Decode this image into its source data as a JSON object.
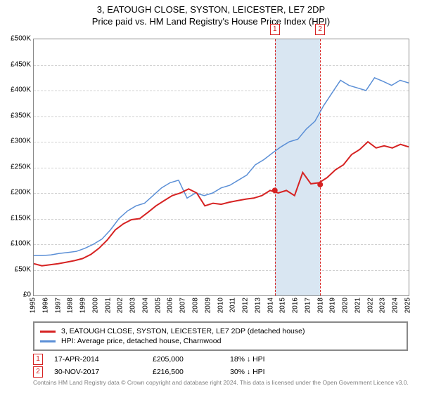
{
  "title_line1": "3, EATOUGH CLOSE, SYSTON, LEICESTER, LE7 2DP",
  "title_line2": "Price paid vs. HM Land Registry's House Price Index (HPI)",
  "chart": {
    "type": "line",
    "x_years": [
      1995,
      1996,
      1997,
      1998,
      1999,
      2000,
      2001,
      2002,
      2003,
      2004,
      2005,
      2006,
      2007,
      2008,
      2009,
      2010,
      2011,
      2012,
      2013,
      2014,
      2015,
      2016,
      2017,
      2018,
      2019,
      2020,
      2021,
      2022,
      2023,
      2024,
      2025
    ],
    "ylim": [
      0,
      500000
    ],
    "ytick_step": 50000,
    "ytick_labels": [
      "£0",
      "£50K",
      "£100K",
      "£150K",
      "£200K",
      "£250K",
      "£300K",
      "£350K",
      "£400K",
      "£450K",
      "£500K"
    ],
    "grid_color": "#d0d0d0",
    "background_color": "#ffffff",
    "series": [
      {
        "name": "hpi",
        "color": "#5b8fd6",
        "line_width": 1.5,
        "label": "HPI: Average price, detached house, Charnwood",
        "values": [
          78,
          78,
          79,
          82,
          84,
          86,
          92,
          100,
          110,
          128,
          150,
          165,
          175,
          180,
          195,
          210,
          220,
          225,
          190,
          200,
          195,
          200,
          210,
          215,
          225,
          235,
          255,
          265,
          278,
          290,
          300,
          305,
          325,
          340,
          370,
          395,
          420,
          410,
          405,
          400,
          425,
          418,
          410,
          420,
          415
        ]
      },
      {
        "name": "property",
        "color": "#d62222",
        "line_width": 2,
        "label": "3, EATOUGH CLOSE, SYSTON, LEICESTER, LE7 2DP (detached house)",
        "values": [
          62,
          58,
          60,
          62,
          65,
          68,
          72,
          80,
          92,
          108,
          128,
          140,
          148,
          150,
          162,
          175,
          185,
          195,
          200,
          208,
          200,
          175,
          180,
          178,
          182,
          185,
          188,
          190,
          195,
          205,
          200,
          205,
          195,
          240,
          218,
          220,
          230,
          245,
          255,
          275,
          285,
          300,
          288,
          292,
          288,
          295,
          290
        ]
      }
    ],
    "highlight_band_color": "#d9e6f2",
    "sales_markers": [
      {
        "num": "1",
        "year": 2014.29,
        "price": 205000,
        "color": "#d62222"
      },
      {
        "num": "2",
        "year": 2017.92,
        "price": 216500,
        "color": "#d62222"
      }
    ]
  },
  "legend": {
    "items": [
      {
        "color": "#d62222",
        "label": "3, EATOUGH CLOSE, SYSTON, LEICESTER, LE7 2DP (detached house)"
      },
      {
        "color": "#5b8fd6",
        "label": "HPI: Average price, detached house, Charnwood"
      }
    ]
  },
  "sales_table": [
    {
      "num": "1",
      "color": "#d62222",
      "date": "17-APR-2014",
      "price": "£205,000",
      "diff": "18% ↓ HPI"
    },
    {
      "num": "2",
      "color": "#d62222",
      "date": "30-NOV-2017",
      "price": "£216,500",
      "diff": "30% ↓ HPI"
    }
  ],
  "attribution": "Contains HM Land Registry data © Crown copyright and database right 2024.\nThis data is licensed under the Open Government Licence v3.0."
}
